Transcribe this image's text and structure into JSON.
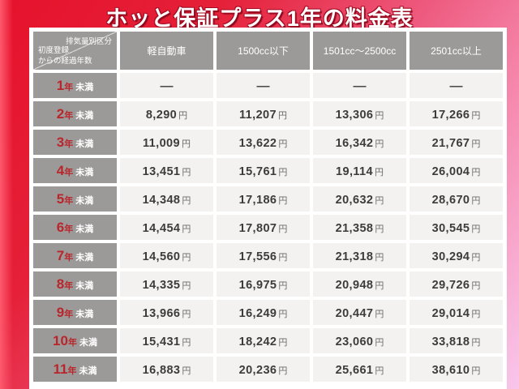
{
  "title": "ホッと保証プラス1年の料金表",
  "table": {
    "corner": {
      "top_right": "排気量別区分",
      "bottom_left_line1": "初度登録",
      "bottom_left_line2": "からの経過年数"
    },
    "columns": [
      "軽自動車",
      "1500cc以下",
      "1501cc〜2500cc",
      "2501cc以上"
    ],
    "year_unit": "年",
    "year_qualifier": "未満",
    "price_unit": "円",
    "empty_marker": "—",
    "rows": [
      {
        "year": "1",
        "prices": [
          "—",
          "—",
          "—",
          "—"
        ]
      },
      {
        "year": "2",
        "prices": [
          "8,290",
          "11,207",
          "13,306",
          "17,266"
        ]
      },
      {
        "year": "3",
        "prices": [
          "11,009",
          "13,622",
          "16,342",
          "21,767"
        ]
      },
      {
        "year": "4",
        "prices": [
          "13,451",
          "15,761",
          "19,114",
          "26,004"
        ]
      },
      {
        "year": "5",
        "prices": [
          "14,348",
          "17,186",
          "20,632",
          "28,670"
        ]
      },
      {
        "year": "6",
        "prices": [
          "14,454",
          "17,807",
          "21,358",
          "30,545"
        ]
      },
      {
        "year": "7",
        "prices": [
          "14,560",
          "17,556",
          "21,318",
          "30,294"
        ]
      },
      {
        "year": "8",
        "prices": [
          "14,335",
          "16,975",
          "20,948",
          "29,726"
        ]
      },
      {
        "year": "9",
        "prices": [
          "13,966",
          "16,249",
          "20,447",
          "29,014"
        ]
      },
      {
        "year": "10",
        "prices": [
          "15,431",
          "18,242",
          "23,060",
          "33,818"
        ]
      },
      {
        "year": "11",
        "prices": [
          "16,883",
          "20,236",
          "25,661",
          "38,610"
        ]
      }
    ]
  },
  "colors": {
    "background_red": "#e6122c",
    "background_pink_light": "#f9c6ec",
    "header_gray": "#9c9a99",
    "cell_bg": "#f4f2f0",
    "accent_red_text": "#b8262c",
    "frame_white": "#ffffff"
  },
  "chart_data": {
    "type": "table",
    "title": "ホッと保証プラス1年の料金表",
    "column_header": "排気量別区分",
    "row_header": "初度登録からの経過年数",
    "columns": [
      "軽自動車",
      "1500cc以下",
      "1501cc〜2500cc",
      "2501cc以上"
    ],
    "rows": [
      "1年未満",
      "2年未満",
      "3年未満",
      "4年未満",
      "5年未満",
      "6年未満",
      "7年未満",
      "8年未満",
      "9年未満",
      "10年未満",
      "11年未満"
    ],
    "unit": "円",
    "values_yen": [
      [
        null,
        null,
        null,
        null
      ],
      [
        8290,
        11207,
        13306,
        17266
      ],
      [
        11009,
        13622,
        16342,
        21767
      ],
      [
        13451,
        15761,
        19114,
        26004
      ],
      [
        14348,
        17186,
        20632,
        28670
      ],
      [
        14454,
        17807,
        21358,
        30545
      ],
      [
        14560,
        17556,
        21318,
        30294
      ],
      [
        14335,
        16975,
        20948,
        29726
      ],
      [
        13966,
        16249,
        20447,
        29014
      ],
      [
        15431,
        18242,
        23060,
        33818
      ],
      [
        16883,
        20236,
        25661,
        38610
      ]
    ]
  }
}
